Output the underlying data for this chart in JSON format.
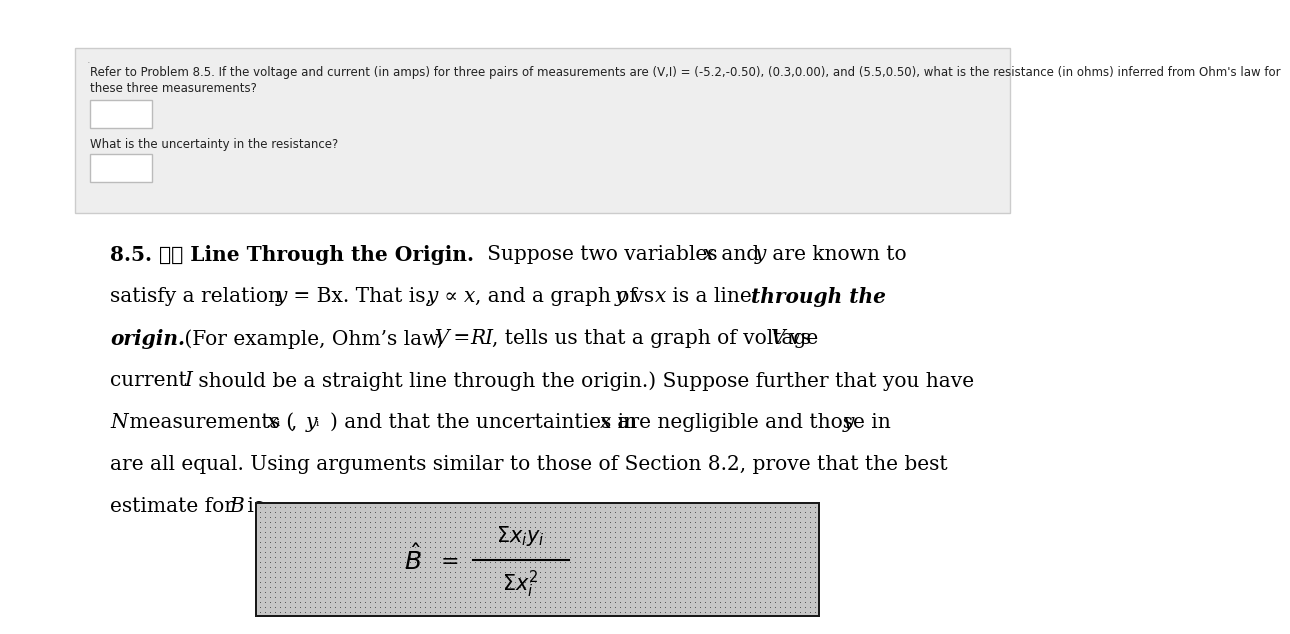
{
  "page_background": "#ffffff",
  "top_box_bg": "#eeeeee",
  "top_box_border": "#cccccc",
  "q_text_line1": "Refer to Problem 8.5. If the voltage and current (in amps) for three pairs of measurements are (V,I) = (-5.2,-0.50), (0.3,0.00), and (5.5,0.50), what is the resistance (in ohms) inferred from Ohm's law for",
  "q_text_line2": "these three measurements?",
  "uncertainty_label": "What is the uncertainty in the resistance?",
  "dot_char": "·",
  "main_text_fontsize": 14.5,
  "small_text_fontsize": 8.5,
  "formula_dot_light": 0.78,
  "formula_dot_dark": 0.35
}
